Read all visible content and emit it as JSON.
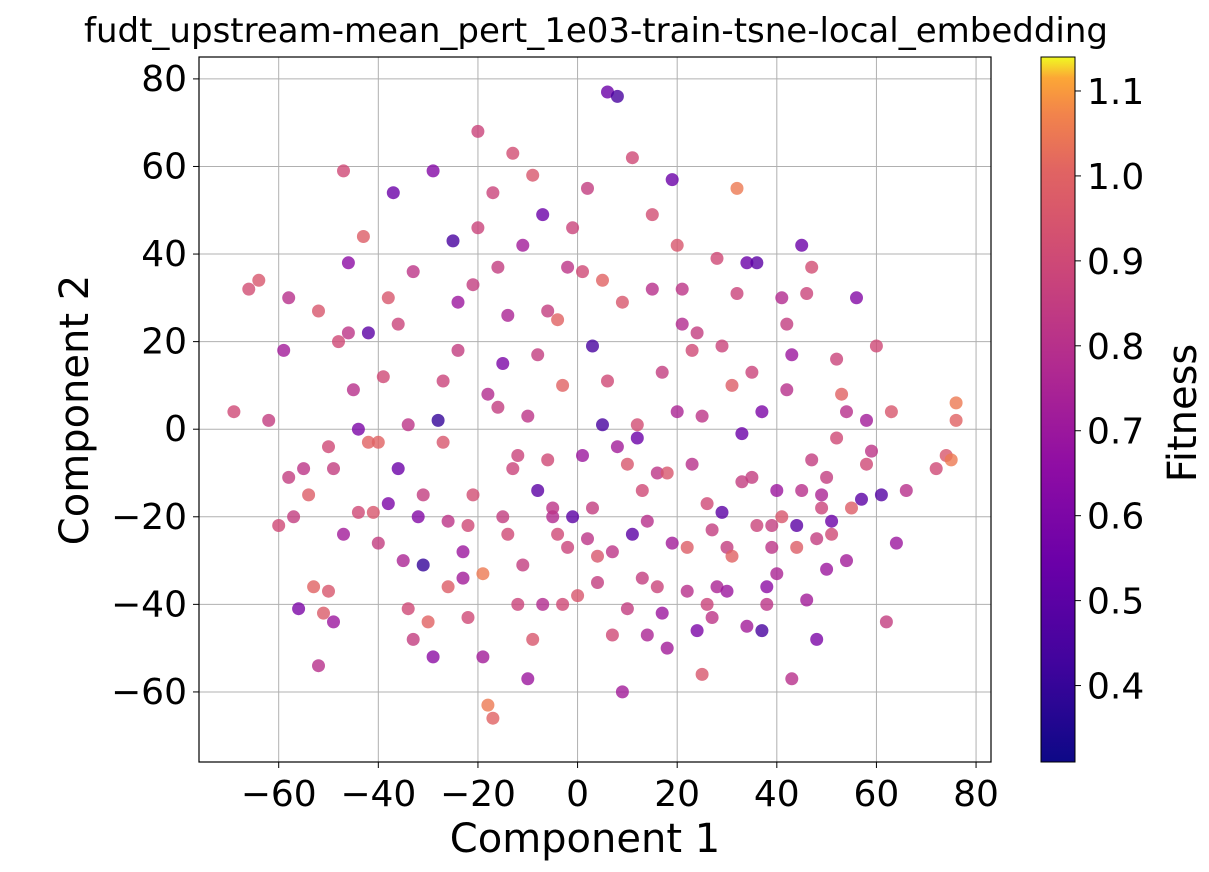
{
  "chart_data": {
    "type": "scatter",
    "title": "fudt_upstream-mean_pert_1e03-train-tsne-local_embedding",
    "xlabel": "Component 1",
    "ylabel": "Component 2",
    "xlim": [
      -76,
      83
    ],
    "ylim": [
      -76,
      85
    ],
    "xticks": [
      -60,
      -40,
      -20,
      0,
      20,
      40,
      60,
      80
    ],
    "yticks": [
      -60,
      -40,
      -20,
      0,
      20,
      40,
      60,
      80
    ],
    "xtick_labels": [
      "−60",
      "−40",
      "−20",
      "0",
      "20",
      "40",
      "60",
      "80"
    ],
    "ytick_labels": [
      "−60",
      "−40",
      "−20",
      "0",
      "20",
      "40",
      "60",
      "80"
    ],
    "grid": true,
    "colormap": "plasma",
    "colorbar": {
      "label": "Fitness",
      "range": [
        0.31,
        1.14
      ],
      "ticks": [
        0.4,
        0.5,
        0.6,
        0.7,
        0.8,
        0.9,
        1.0,
        1.1
      ],
      "tick_labels": [
        "0.4",
        "0.5",
        "0.6",
        "0.7",
        "0.8",
        "0.9",
        "1.0",
        "1.1"
      ]
    },
    "points": [
      [
        -69,
        4,
        0.9
      ],
      [
        -66,
        32,
        0.92
      ],
      [
        -64,
        34,
        0.95
      ],
      [
        -62,
        2,
        0.85
      ],
      [
        -60,
        -22,
        0.9
      ],
      [
        -59,
        18,
        0.72
      ],
      [
        -58,
        30,
        0.8
      ],
      [
        -57,
        -20,
        0.85
      ],
      [
        -56,
        -41,
        0.6
      ],
      [
        -55,
        -9,
        0.82
      ],
      [
        -54,
        -15,
        0.98
      ],
      [
        -53,
        -36,
        1.0
      ],
      [
        -52,
        -54,
        0.8
      ],
      [
        -51,
        -42,
        0.97
      ],
      [
        -50,
        -37,
        0.95
      ],
      [
        -49,
        -44,
        0.7
      ],
      [
        -48,
        20,
        0.9
      ],
      [
        -47,
        59,
        0.9
      ],
      [
        -46,
        38,
        0.65
      ],
      [
        -45,
        9,
        0.8
      ],
      [
        -44,
        0,
        0.6
      ],
      [
        -43,
        44,
        0.98
      ],
      [
        -42,
        22,
        0.5
      ],
      [
        -41,
        -19,
        0.95
      ],
      [
        -40,
        -3,
        1.0
      ],
      [
        -39,
        12,
        0.9
      ],
      [
        -38,
        30,
        0.95
      ],
      [
        -37,
        54,
        0.55
      ],
      [
        -36,
        -9,
        0.55
      ],
      [
        -35,
        -30,
        0.75
      ],
      [
        -34,
        -41,
        0.9
      ],
      [
        -33,
        -48,
        0.85
      ],
      [
        -32,
        -20,
        0.62
      ],
      [
        -31,
        -31,
        0.4
      ],
      [
        -30,
        -44,
        1.0
      ],
      [
        -29,
        59,
        0.62
      ],
      [
        -28,
        2,
        0.4
      ],
      [
        -27,
        11,
        0.88
      ],
      [
        -26,
        -36,
        0.98
      ],
      [
        -25,
        43,
        0.45
      ],
      [
        -24,
        18,
        0.85
      ],
      [
        -23,
        -28,
        0.7
      ],
      [
        -22,
        -43,
        0.9
      ],
      [
        -21,
        -15,
        0.92
      ],
      [
        -20,
        68,
        0.88
      ],
      [
        -19,
        -33,
        1.05
      ],
      [
        -18,
        -63,
        1.05
      ],
      [
        -17,
        -66,
        1.0
      ],
      [
        -16,
        5,
        0.85
      ],
      [
        -15,
        15,
        0.6
      ],
      [
        -14,
        -24,
        0.9
      ],
      [
        -13,
        63,
        0.92
      ],
      [
        -12,
        -6,
        0.88
      ],
      [
        -11,
        42,
        0.72
      ],
      [
        -10,
        -57,
        0.7
      ],
      [
        -9,
        -48,
        0.95
      ],
      [
        -8,
        -14,
        0.5
      ],
      [
        -7,
        49,
        0.55
      ],
      [
        -6,
        27,
        0.85
      ],
      [
        -5,
        -20,
        0.78
      ],
      [
        -4,
        -24,
        0.9
      ],
      [
        -3,
        10,
        1.0
      ],
      [
        -2,
        37,
        0.82
      ],
      [
        -1,
        -20,
        0.5
      ],
      [
        0,
        -38,
        0.95
      ],
      [
        1,
        -6,
        0.7
      ],
      [
        2,
        55,
        0.85
      ],
      [
        3,
        19,
        0.45
      ],
      [
        4,
        -29,
        0.95
      ],
      [
        5,
        1,
        0.45
      ],
      [
        6,
        77,
        0.55
      ],
      [
        7,
        -47,
        0.9
      ],
      [
        8,
        76,
        0.45
      ],
      [
        9,
        -60,
        0.72
      ],
      [
        10,
        -8,
        0.95
      ],
      [
        11,
        62,
        0.9
      ],
      [
        12,
        -2,
        0.55
      ],
      [
        13,
        -34,
        0.85
      ],
      [
        14,
        -47,
        0.75
      ],
      [
        15,
        49,
        0.92
      ],
      [
        16,
        -10,
        0.82
      ],
      [
        17,
        -42,
        0.7
      ],
      [
        18,
        -10,
        0.95
      ],
      [
        19,
        57,
        0.55
      ],
      [
        20,
        42,
        0.95
      ],
      [
        21,
        24,
        0.78
      ],
      [
        22,
        -27,
        0.98
      ],
      [
        23,
        -8,
        0.8
      ],
      [
        24,
        -46,
        0.6
      ],
      [
        25,
        -56,
        0.95
      ],
      [
        26,
        -17,
        0.9
      ],
      [
        27,
        -43,
        0.82
      ],
      [
        28,
        -36,
        0.75
      ],
      [
        29,
        -19,
        0.5
      ],
      [
        30,
        -27,
        0.85
      ],
      [
        31,
        10,
        0.98
      ],
      [
        32,
        55,
        1.05
      ],
      [
        33,
        -1,
        0.55
      ],
      [
        34,
        38,
        0.55
      ],
      [
        35,
        -11,
        0.85
      ],
      [
        36,
        -22,
        0.88
      ],
      [
        37,
        -46,
        0.45
      ],
      [
        38,
        -36,
        0.65
      ],
      [
        39,
        -27,
        0.82
      ],
      [
        40,
        -33,
        0.75
      ],
      [
        41,
        -20,
        0.95
      ],
      [
        42,
        9,
        0.8
      ],
      [
        43,
        -57,
        0.8
      ],
      [
        44,
        -22,
        0.5
      ],
      [
        45,
        42,
        0.55
      ],
      [
        46,
        -39,
        0.72
      ],
      [
        47,
        37,
        0.92
      ],
      [
        48,
        -48,
        0.6
      ],
      [
        49,
        -18,
        0.88
      ],
      [
        50,
        -32,
        0.7
      ],
      [
        51,
        -21,
        0.55
      ],
      [
        52,
        16,
        0.88
      ],
      [
        53,
        8,
        1.0
      ],
      [
        54,
        -30,
        0.72
      ],
      [
        55,
        -18,
        0.98
      ],
      [
        56,
        30,
        0.62
      ],
      [
        57,
        -16,
        0.5
      ],
      [
        58,
        -8,
        0.9
      ],
      [
        59,
        -5,
        0.82
      ],
      [
        60,
        19,
        0.9
      ],
      [
        61,
        -15,
        0.48
      ],
      [
        62,
        -44,
        0.85
      ],
      [
        63,
        4,
        0.95
      ],
      [
        64,
        -26,
        0.7
      ],
      [
        66,
        -14,
        0.8
      ],
      [
        72,
        -9,
        0.9
      ],
      [
        74,
        -6,
        0.95
      ],
      [
        75,
        -7,
        1.05
      ],
      [
        76,
        6,
        1.05
      ],
      [
        76,
        2,
        1.0
      ],
      [
        -49,
        -9,
        0.85
      ],
      [
        -46,
        22,
        0.82
      ],
      [
        -44,
        -19,
        0.9
      ],
      [
        -38,
        -17,
        0.6
      ],
      [
        -34,
        1,
        0.82
      ],
      [
        -31,
        -15,
        0.85
      ],
      [
        -27,
        -3,
        0.95
      ],
      [
        -24,
        29,
        0.7
      ],
      [
        -22,
        -22,
        0.9
      ],
      [
        -20,
        46,
        0.88
      ],
      [
        -18,
        8,
        0.78
      ],
      [
        -16,
        37,
        0.85
      ],
      [
        -14,
        26,
        0.75
      ],
      [
        -12,
        -40,
        0.88
      ],
      [
        -10,
        3,
        0.82
      ],
      [
        -8,
        17,
        0.85
      ],
      [
        -6,
        -7,
        0.9
      ],
      [
        -4,
        25,
        1.0
      ],
      [
        -2,
        -27,
        0.88
      ],
      [
        1,
        36,
        0.9
      ],
      [
        3,
        -18,
        0.85
      ],
      [
        5,
        34,
        1.0
      ],
      [
        7,
        -28,
        0.82
      ],
      [
        9,
        29,
        0.95
      ],
      [
        11,
        -24,
        0.5
      ],
      [
        13,
        -14,
        0.9
      ],
      [
        15,
        32,
        0.8
      ],
      [
        17,
        13,
        0.85
      ],
      [
        19,
        -26,
        0.72
      ],
      [
        21,
        32,
        0.82
      ],
      [
        23,
        18,
        0.9
      ],
      [
        25,
        3,
        0.82
      ],
      [
        27,
        -23,
        0.85
      ],
      [
        29,
        19,
        0.88
      ],
      [
        31,
        -29,
        1.0
      ],
      [
        33,
        -12,
        0.85
      ],
      [
        35,
        13,
        0.88
      ],
      [
        37,
        4,
        0.6
      ],
      [
        39,
        -22,
        0.85
      ],
      [
        41,
        30,
        0.78
      ],
      [
        43,
        17,
        0.7
      ],
      [
        45,
        -14,
        0.8
      ],
      [
        47,
        -7,
        0.85
      ],
      [
        49,
        -15,
        0.75
      ],
      [
        51,
        -24,
        0.9
      ],
      [
        -58,
        -11,
        0.85
      ],
      [
        -52,
        27,
        0.95
      ],
      [
        -50,
        -4,
        0.9
      ],
      [
        -47,
        -24,
        0.72
      ],
      [
        -42,
        -3,
        1.0
      ],
      [
        -40,
        -26,
        0.85
      ],
      [
        -36,
        24,
        0.88
      ],
      [
        -33,
        36,
        0.82
      ],
      [
        -29,
        -52,
        0.65
      ],
      [
        -26,
        -21,
        0.82
      ],
      [
        -23,
        -34,
        0.72
      ],
      [
        -21,
        33,
        0.85
      ],
      [
        -19,
        -52,
        0.72
      ],
      [
        -17,
        54,
        0.88
      ],
      [
        -15,
        -20,
        0.85
      ],
      [
        -13,
        -9,
        0.88
      ],
      [
        -11,
        -31,
        0.85
      ],
      [
        -9,
        58,
        0.95
      ],
      [
        -7,
        -40,
        0.78
      ],
      [
        -5,
        -18,
        0.82
      ],
      [
        -3,
        -40,
        0.9
      ],
      [
        -1,
        46,
        0.88
      ],
      [
        2,
        -25,
        0.82
      ],
      [
        4,
        -35,
        0.85
      ],
      [
        6,
        11,
        0.9
      ],
      [
        8,
        -4,
        0.72
      ],
      [
        10,
        -41,
        0.85
      ],
      [
        12,
        1,
        0.92
      ],
      [
        14,
        -21,
        0.8
      ],
      [
        16,
        -36,
        0.88
      ],
      [
        18,
        -50,
        0.72
      ],
      [
        20,
        4,
        0.75
      ],
      [
        22,
        -37,
        0.8
      ],
      [
        24,
        22,
        0.85
      ],
      [
        26,
        -40,
        0.88
      ],
      [
        28,
        39,
        0.9
      ],
      [
        30,
        -37,
        0.7
      ],
      [
        32,
        31,
        0.88
      ],
      [
        34,
        -45,
        0.72
      ],
      [
        36,
        38,
        0.5
      ],
      [
        38,
        -40,
        0.82
      ],
      [
        40,
        -14,
        0.7
      ],
      [
        42,
        24,
        0.85
      ],
      [
        44,
        -27,
        0.98
      ],
      [
        46,
        31,
        0.88
      ],
      [
        48,
        -25,
        0.85
      ],
      [
        50,
        -11,
        0.85
      ],
      [
        52,
        -2,
        0.9
      ],
      [
        54,
        4,
        0.8
      ],
      [
        58,
        2,
        0.72
      ]
    ]
  }
}
